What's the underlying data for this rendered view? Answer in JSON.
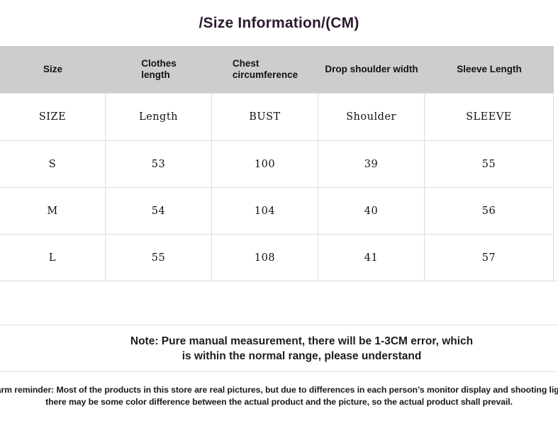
{
  "title": "/Size Information/(CM)",
  "size_table": {
    "headers": [
      [
        "Size"
      ],
      [
        "Clothes",
        "length"
      ],
      [
        "Chest",
        "circumference"
      ],
      [
        "Drop shoulder width"
      ],
      [
        "Sleeve Length"
      ]
    ],
    "rows": [
      [
        "SIZE",
        "Length",
        "BUST",
        "Shoulder",
        "SLEEVE"
      ],
      [
        "S",
        "53",
        "100",
        "39",
        "55"
      ],
      [
        "M",
        "54",
        "104",
        "40",
        "56"
      ],
      [
        "L",
        "55",
        "108",
        "41",
        "57"
      ]
    ]
  },
  "note": {
    "line1": "Note: Pure manual measurement, there will be 1-3CM error, which",
    "line2": "is within the normal range, please understand"
  },
  "reminder": {
    "line1": "Warm reminder: Most of the products in this store are real pictures, but due to differences in each person’s monitor display and shooting light,",
    "line2": "there may be some color difference between the actual product and the picture, so the actual product shall prevail."
  },
  "colors": {
    "header_band": "#cdcdcd",
    "title_text": "#2b1a2e",
    "border": "#dcdcdc",
    "body_text": "#1c1c1c"
  }
}
